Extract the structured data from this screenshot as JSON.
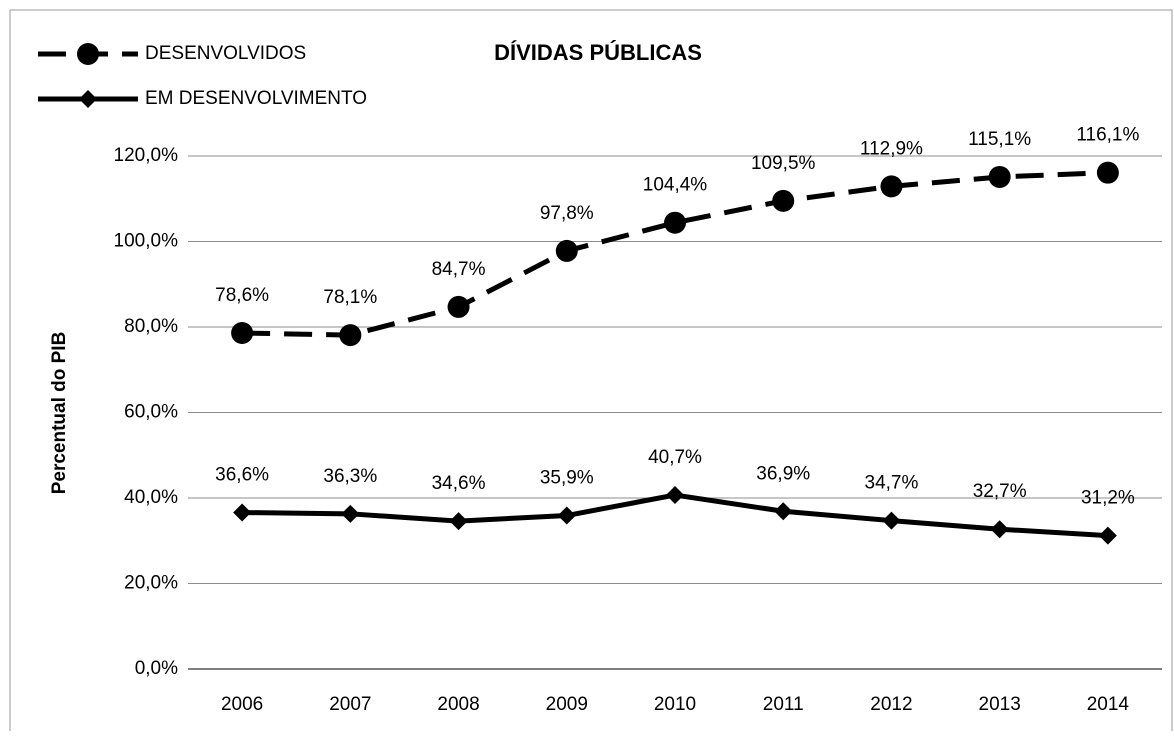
{
  "chart_data": {
    "type": "line",
    "title": "DÍVIDAS PÚBLICAS",
    "y_label": "Percentual do PIB",
    "categories": [
      "2006",
      "2007",
      "2008",
      "2009",
      "2010",
      "2011",
      "2012",
      "2013",
      "2014"
    ],
    "series": [
      {
        "name": "DESENVOLVIDOS",
        "color": "#000000",
        "line_style": "dashed",
        "marker": "circle",
        "values": [
          78.6,
          78.1,
          84.7,
          97.8,
          104.4,
          109.5,
          112.9,
          115.1,
          116.1
        ],
        "value_labels": [
          "78,6%",
          "78,1%",
          "84,7%",
          "97,8%",
          "104,4%",
          "109,5%",
          "112,9%",
          "115,1%",
          "116,1%"
        ]
      },
      {
        "name": "EM DESENVOLVIMENTO",
        "color": "#000000",
        "line_style": "solid",
        "marker": "diamond",
        "values": [
          36.6,
          36.3,
          34.6,
          35.9,
          40.7,
          36.9,
          34.7,
          32.7,
          31.2
        ],
        "value_labels": [
          "36,6%",
          "36,3%",
          "34,6%",
          "35,9%",
          "40,7%",
          "36,9%",
          "34,7%",
          "32,7%",
          "31,2%"
        ]
      }
    ],
    "ylim": [
      0,
      120
    ],
    "yticks": [
      {
        "value": 0,
        "label": "0,0%"
      },
      {
        "value": 20,
        "label": "20,0%"
      },
      {
        "value": 40,
        "label": "40,0%"
      },
      {
        "value": 60,
        "label": "60,0%"
      },
      {
        "value": 80,
        "label": "80,0%"
      },
      {
        "value": 100,
        "label": "100,0%"
      },
      {
        "value": 120,
        "label": "120,0%"
      }
    ],
    "grid": true,
    "legend": "top-left"
  }
}
